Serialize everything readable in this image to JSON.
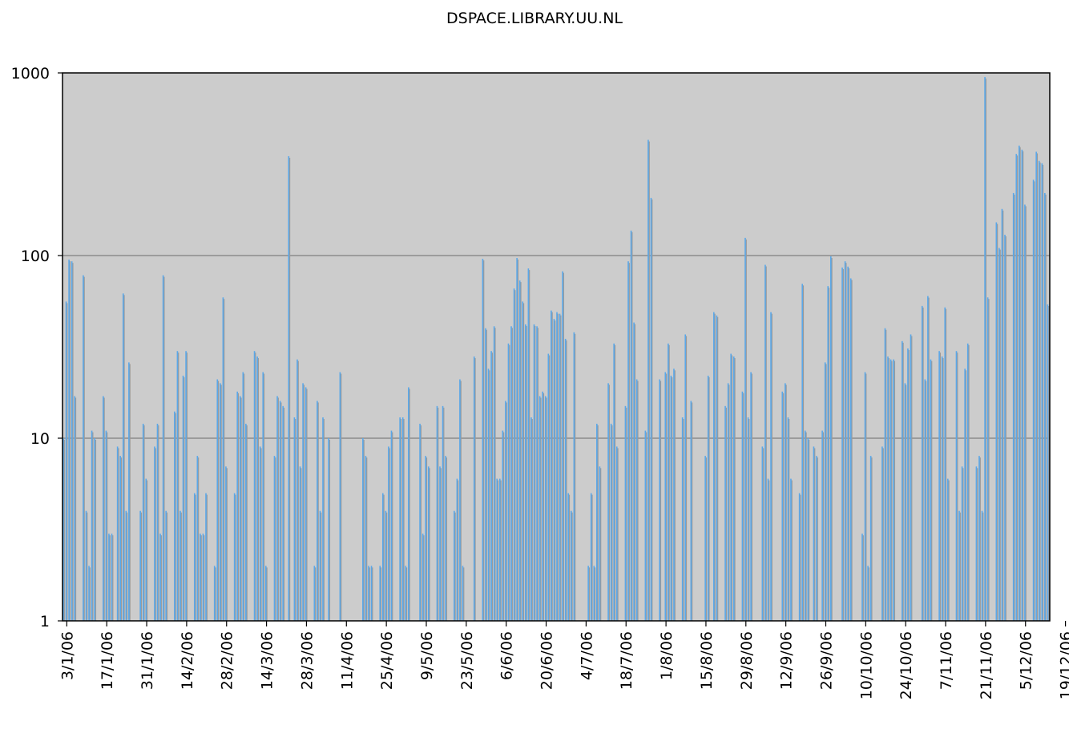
{
  "chart_data": {
    "type": "bar",
    "title": "DSPACE.LIBRARY.UU.NL",
    "xlabel": "",
    "ylabel": "",
    "yscale": "log",
    "ylim": [
      1,
      1000
    ],
    "grid": true,
    "colors": {
      "bar": "#5aa7e8",
      "shadow": "#9a9a9a",
      "plot_bg": "#cccccc",
      "grid": "#808080"
    },
    "y_ticks": [
      "1000",
      "100",
      "10",
      "1"
    ],
    "x_ticks": [
      "3/1/06",
      "17/1/06",
      "31/1/06",
      "14/2/06",
      "28/2/06",
      "14/3/06",
      "28/3/06",
      "11/4/06",
      "25/4/06",
      "9/5/06",
      "23/5/06",
      "6/6/06",
      "20/6/06",
      "4/7/06",
      "18/7/06",
      "1/8/06",
      "15/8/06",
      "29/8/06",
      "12/9/06",
      "26/9/06",
      "10/10/06",
      "24/10/06",
      "7/11/06",
      "21/11/06",
      "5/12/06",
      "19/12/06"
    ],
    "start_date": "2/1/06",
    "values": [
      10,
      56,
      95,
      93,
      17,
      1,
      1,
      78,
      4,
      2,
      11,
      10,
      1,
      1,
      17,
      11,
      3,
      3,
      1,
      9,
      8,
      62,
      4,
      26,
      1,
      1,
      1,
      4,
      12,
      6,
      1,
      1,
      9,
      12,
      3,
      78,
      4,
      1,
      1,
      14,
      30,
      4,
      22,
      30,
      1,
      1,
      5,
      8,
      3,
      3,
      5,
      1,
      1,
      2,
      21,
      20,
      59,
      7,
      1,
      1,
      5,
      18,
      17,
      23,
      12,
      1,
      1,
      30,
      28,
      9,
      23,
      2,
      1,
      1,
      8,
      17,
      16,
      15,
      1,
      350,
      1,
      13,
      27,
      7,
      20,
      19,
      1,
      1,
      2,
      16,
      4,
      13,
      1,
      10,
      1,
      1,
      1,
      23,
      1,
      1,
      1,
      1,
      1,
      1,
      1,
      10,
      8,
      2,
      2,
      1,
      1,
      2,
      5,
      4,
      9,
      11,
      1,
      1,
      13,
      13,
      2,
      19,
      1,
      1,
      1,
      12,
      3,
      8,
      7,
      1,
      1,
      15,
      7,
      15,
      8,
      1,
      1,
      4,
      6,
      21,
      2,
      1,
      1,
      1,
      28,
      1,
      1,
      96,
      40,
      24,
      30,
      41,
      6,
      6,
      11,
      16,
      33,
      41,
      66,
      97,
      73,
      56,
      42,
      85,
      13,
      42,
      41,
      17,
      18,
      17,
      29,
      50,
      45,
      49,
      48,
      82,
      35,
      5,
      4,
      38,
      1,
      1,
      1,
      1,
      2,
      5,
      2,
      12,
      7,
      1,
      1,
      20,
      12,
      33,
      9,
      1,
      1,
      15,
      93,
      137,
      43,
      21,
      1,
      1,
      11,
      430,
      207,
      1,
      1,
      21,
      1,
      23,
      33,
      22,
      24,
      1,
      1,
      13,
      37,
      1,
      16,
      1,
      1,
      1,
      1,
      8,
      22,
      1,
      49,
      47,
      1,
      1,
      15,
      20,
      29,
      28,
      1,
      1,
      18,
      125,
      13,
      23,
      1,
      1,
      1,
      9,
      89,
      6,
      49,
      1,
      1,
      1,
      18,
      20,
      13,
      6,
      1,
      1,
      5,
      70,
      11,
      10,
      1,
      9,
      8,
      1,
      11,
      26,
      68,
      99,
      1,
      1,
      1,
      86,
      93,
      87,
      75,
      1,
      1,
      1,
      3,
      23,
      2,
      8,
      1,
      1,
      1,
      9,
      40,
      28,
      27,
      27,
      1,
      1,
      34,
      20,
      31,
      37,
      1,
      1,
      1,
      53,
      21,
      60,
      27,
      1,
      1,
      30,
      28,
      52,
      6,
      1,
      1,
      30,
      4,
      7,
      24,
      33,
      1,
      1,
      7,
      8,
      4,
      950,
      59,
      1,
      1,
      152,
      110,
      180,
      130,
      1,
      1,
      220,
      360,
      400,
      380,
      190,
      1,
      1,
      260,
      370,
      330,
      320,
      220,
      54
    ]
  }
}
